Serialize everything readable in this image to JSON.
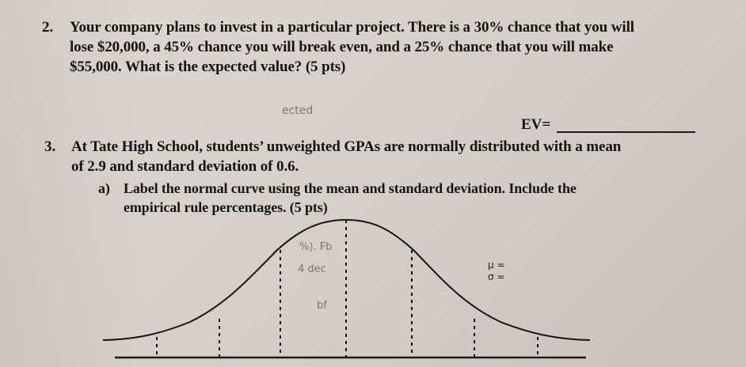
{
  "question2": {
    "number": "2.",
    "line1": "Your company plans to invest in a particular project. There is a 30% chance that you will",
    "line2": "lose $20,000, a 45% chance you will break even, and a 25% chance that you will make",
    "line3": "$55,000. What is the expected value? (5 pts)"
  },
  "answer": {
    "ev_label": "EV="
  },
  "question3": {
    "number": "3.",
    "line1": "At Tate High School, students’ unweighted GPAs are normally distributed with a mean",
    "line2": "of 2.9 and standard deviation of 0.6.",
    "part_a_label": "a)",
    "part_a_line1": "Label the normal curve using the mean and standard deviation. Include the",
    "part_a_line2": "empirical rule percentages. (5 pts)"
  },
  "chart_labels": {
    "mu": "μ =",
    "sigma": "σ ="
  },
  "pencil_marks": {
    "mark1": "ected",
    "mark2": "%). Fb",
    "mark3": "4 dec",
    "mark4": "bf"
  }
}
